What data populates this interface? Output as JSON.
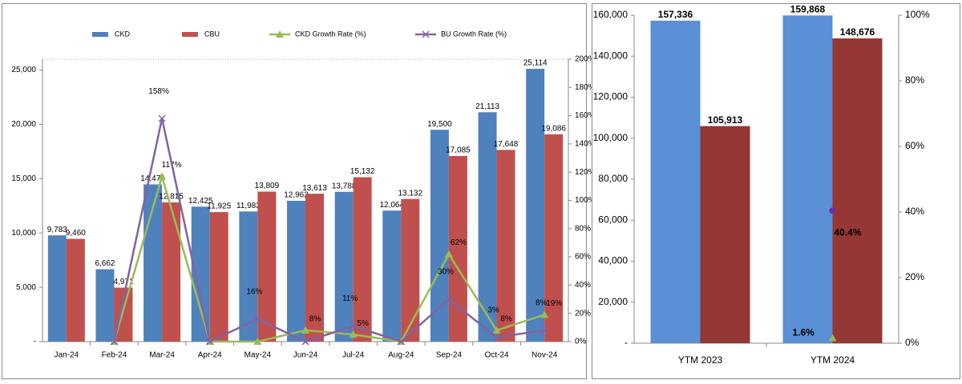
{
  "chart_data": [
    {
      "type": "bar",
      "categories": [
        "Jan-24",
        "Feb-24",
        "Mar-24",
        "Apr-24",
        "May-24",
        "Jun-24",
        "Jul-24",
        "Aug-24",
        "Sep-24",
        "Oct-24",
        "Nov-24"
      ],
      "series": [
        {
          "name": "CKD",
          "color": "#4f81bd",
          "values": [
            9783,
            6662,
            14474,
            12425,
            11983,
            12962,
            13788,
            12064,
            19500,
            21113,
            25114
          ],
          "value_labels": [
            "9,783",
            "6,662",
            "14,474",
            "12,425",
            "11,983",
            "12,962",
            "13,788",
            "12,064",
            "19,500",
            "21,113",
            "25,114"
          ]
        },
        {
          "name": "CBU",
          "color": "#c0504d",
          "values": [
            9460,
            4971,
            12815,
            11925,
            13809,
            13613,
            15132,
            13132,
            17085,
            17648,
            19086
          ],
          "value_labels": [
            "9,460",
            "4,971",
            "12,815",
            "11,925",
            "13,809",
            "13,613",
            "15,132",
            "13,132",
            "17,085",
            "17,648",
            "19,086"
          ]
        },
        {
          "name": "CKD Growth Rate (%)",
          "type": "line",
          "axis": "y2",
          "color": "#9bbb59",
          "marker": "triangle",
          "values": [
            null,
            0,
            117,
            0,
            0,
            8,
            5,
            0,
            62,
            8,
            19
          ],
          "value_labels": [
            null,
            null,
            "117%",
            null,
            null,
            "8%",
            "5%",
            null,
            "62%",
            "8%",
            "19%"
          ]
        },
        {
          "name": "BU Growth Rate (%)",
          "type": "line",
          "axis": "y2",
          "color": "#8064a2",
          "marker": "x",
          "values": [
            null,
            0,
            158,
            0,
            16,
            0,
            11,
            0,
            30,
            3,
            8
          ],
          "value_labels": [
            null,
            null,
            "158%",
            null,
            "16%",
            null,
            "11%",
            null,
            "30%",
            "3%",
            "8%"
          ]
        }
      ],
      "ylim": [
        0,
        26000
      ],
      "yticks": [
        {
          "value": 0,
          "label": "-"
        },
        {
          "value": 5000,
          "label": "5,000"
        },
        {
          "value": 10000,
          "label": "10,000"
        },
        {
          "value": 15000,
          "label": "15,000"
        },
        {
          "value": 20000,
          "label": "20,000"
        },
        {
          "value": 25000,
          "label": "25,000"
        }
      ],
      "y2lim": [
        0,
        200
      ],
      "y2ticks": [
        {
          "value": 0,
          "label": "0%"
        },
        {
          "value": 20,
          "label": "20%"
        },
        {
          "value": 40,
          "label": "40%"
        },
        {
          "value": 60,
          "label": "60%"
        },
        {
          "value": 80,
          "label": "80%"
        },
        {
          "value": 100,
          "label": "100%"
        },
        {
          "value": 120,
          "label": "120%"
        },
        {
          "value": 140,
          "label": "140%"
        },
        {
          "value": 160,
          "label": "160%"
        },
        {
          "value": 180,
          "label": "180%"
        },
        {
          "value": 200,
          "label": "200%"
        }
      ],
      "legend": "top"
    },
    {
      "type": "bar",
      "categories": [
        "YTM 2023",
        "YTM 2024"
      ],
      "series": [
        {
          "color": "#5b8fd6",
          "values": [
            157336,
            159868
          ],
          "value_labels": [
            "157,336",
            "159,868"
          ]
        },
        {
          "color": "#953735",
          "values": [
            105913,
            148676
          ],
          "value_labels": [
            "105,913",
            "148,676"
          ]
        },
        {
          "type": "line",
          "axis": "y2",
          "color": "#9bbb59",
          "marker": "triangle",
          "values": [
            null,
            1.6
          ],
          "value_labels": [
            null,
            "1.6%"
          ]
        },
        {
          "type": "line",
          "axis": "y2",
          "color": "#7030a0",
          "marker": "dot",
          "values": [
            null,
            40.4
          ],
          "value_labels": [
            null,
            "40.4%"
          ]
        }
      ],
      "ylim": [
        0,
        160000
      ],
      "yticks": [
        {
          "value": 0,
          "label": "-"
        },
        {
          "value": 20000,
          "label": "20,000"
        },
        {
          "value": 40000,
          "label": "40,000"
        },
        {
          "value": 60000,
          "label": "60,000"
        },
        {
          "value": 80000,
          "label": "80,000"
        },
        {
          "value": 100000,
          "label": "100,000"
        },
        {
          "value": 120000,
          "label": "120,000"
        },
        {
          "value": 140000,
          "label": "140,000"
        },
        {
          "value": 160000,
          "label": "160,000"
        }
      ],
      "y2lim": [
        0,
        100
      ],
      "y2ticks": [
        {
          "value": 0,
          "label": "0%"
        },
        {
          "value": 20,
          "label": "20%"
        },
        {
          "value": 40,
          "label": "40%"
        },
        {
          "value": 60,
          "label": "60%"
        },
        {
          "value": 80,
          "label": "80%"
        },
        {
          "value": 100,
          "label": "100%"
        }
      ]
    }
  ]
}
